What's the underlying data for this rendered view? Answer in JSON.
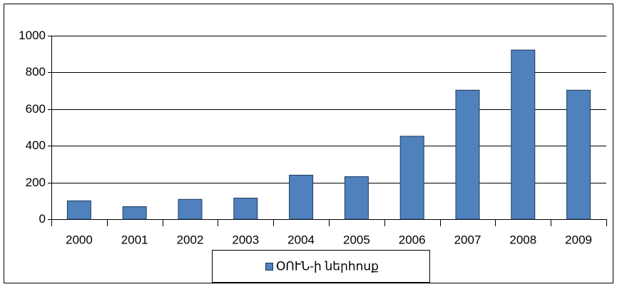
{
  "chart_data": {
    "type": "bar",
    "categories": [
      "2000",
      "2001",
      "2002",
      "2003",
      "2004",
      "2005",
      "2006",
      "2007",
      "2008",
      "2009"
    ],
    "series": [
      {
        "name": "ՕՈՒՆ-ի ներհոսք",
        "color": "#4f81bd",
        "values": [
          100,
          68,
          108,
          115,
          240,
          232,
          452,
          703,
          922,
          703
        ]
      }
    ],
    "ylim": [
      0,
      1000
    ],
    "yticks": [
      0,
      200,
      400,
      600,
      800,
      1000
    ],
    "grid": true,
    "legend": "bottom"
  }
}
